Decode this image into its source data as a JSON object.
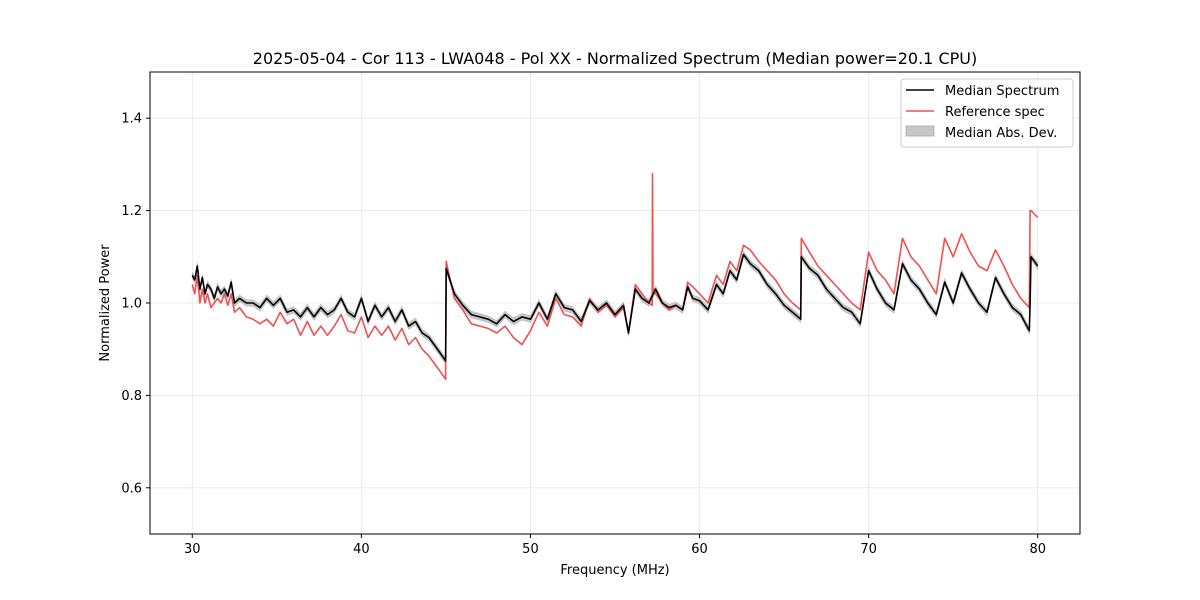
{
  "chart_data": {
    "type": "line",
    "title": "2025-05-04 - Cor 113 - LWA048 - Pol XX - Normalized Spectrum (Median power=20.1 CPU)",
    "xlabel": "Frequency (MHz)",
    "ylabel": "Normalized Power",
    "xlim": [
      27.5,
      82.5
    ],
    "ylim": [
      0.5,
      1.5
    ],
    "x_ticks": [
      30,
      40,
      50,
      60,
      70,
      80
    ],
    "x_tick_labels": [
      "30",
      "40",
      "50",
      "60",
      "70",
      "80"
    ],
    "y_ticks": [
      0.6,
      0.8,
      1.0,
      1.2,
      1.4
    ],
    "y_tick_labels": [
      "0.6",
      "0.8",
      "1.0",
      "1.2",
      "1.4"
    ],
    "grid": true,
    "legend_position": "top-right",
    "legend": [
      {
        "label": "Median Spectrum",
        "kind": "line",
        "color": "#000000"
      },
      {
        "label": "Reference spec",
        "kind": "line",
        "color": "#f05050"
      },
      {
        "label": "Median Abs. Dev.",
        "kind": "patch",
        "color": "#c8c8c8"
      }
    ],
    "mad_halfwidth": 0.007,
    "series": [
      {
        "name": "Median Spectrum",
        "color": "#000000",
        "x": [
          30.0,
          30.15,
          30.3,
          30.45,
          30.6,
          30.75,
          30.9,
          31.1,
          31.3,
          31.5,
          31.7,
          31.9,
          32.1,
          32.3,
          32.5,
          32.8,
          33.2,
          33.6,
          34.0,
          34.4,
          34.8,
          35.2,
          35.6,
          36.0,
          36.4,
          36.8,
          37.2,
          37.6,
          38.0,
          38.4,
          38.8,
          39.2,
          39.6,
          40.0,
          40.4,
          40.8,
          41.2,
          41.6,
          42.0,
          42.4,
          42.8,
          43.2,
          43.6,
          44.0,
          44.4,
          44.98,
          45.02,
          45.5,
          46.0,
          46.5,
          47.0,
          47.5,
          48.0,
          48.5,
          49.0,
          49.5,
          50.0,
          50.5,
          51.0,
          51.5,
          52.0,
          52.5,
          53.0,
          53.5,
          54.0,
          54.5,
          55.0,
          55.5,
          55.8,
          56.2,
          56.6,
          57.0,
          57.4,
          57.8,
          58.2,
          58.6,
          59.0,
          59.3,
          59.6,
          60.0,
          60.5,
          61.0,
          61.4,
          61.8,
          62.2,
          62.6,
          63.0,
          63.5,
          64.0,
          64.5,
          65.0,
          65.5,
          65.98,
          66.02,
          66.5,
          67.0,
          67.5,
          68.0,
          68.5,
          69.0,
          69.5,
          70.0,
          70.5,
          71.0,
          71.5,
          72.0,
          72.5,
          73.0,
          73.5,
          74.0,
          74.5,
          75.0,
          75.5,
          76.0,
          76.5,
          77.0,
          77.5,
          78.0,
          78.5,
          79.0,
          79.5,
          79.55,
          79.6,
          80.0
        ],
        "y": [
          1.06,
          1.05,
          1.08,
          1.03,
          1.055,
          1.02,
          1.04,
          1.03,
          1.01,
          1.035,
          1.02,
          1.03,
          1.015,
          1.045,
          1.0,
          1.01,
          1.0,
          1.0,
          0.99,
          1.01,
          0.995,
          1.01,
          0.98,
          0.985,
          0.97,
          0.99,
          0.97,
          0.99,
          0.975,
          0.985,
          1.01,
          0.98,
          0.97,
          1.01,
          0.96,
          0.995,
          0.97,
          0.99,
          0.96,
          0.985,
          0.95,
          0.96,
          0.935,
          0.925,
          0.905,
          0.875,
          1.075,
          1.02,
          0.995,
          0.975,
          0.97,
          0.965,
          0.955,
          0.975,
          0.96,
          0.97,
          0.965,
          1.0,
          0.965,
          1.02,
          0.99,
          0.985,
          0.96,
          1.005,
          0.985,
          1.0,
          0.975,
          0.995,
          0.935,
          1.03,
          1.01,
          1.0,
          1.03,
          1.0,
          0.99,
          0.995,
          0.985,
          1.035,
          1.01,
          1.005,
          0.985,
          1.04,
          1.02,
          1.07,
          1.05,
          1.105,
          1.085,
          1.07,
          1.04,
          1.02,
          0.995,
          0.98,
          0.965,
          1.1,
          1.075,
          1.06,
          1.03,
          1.01,
          0.99,
          0.98,
          0.955,
          1.07,
          1.03,
          1.0,
          0.985,
          1.085,
          1.05,
          1.03,
          1.0,
          0.975,
          1.045,
          1.0,
          1.065,
          1.03,
          1.0,
          0.98,
          1.055,
          1.02,
          0.99,
          0.975,
          0.94,
          1.0,
          1.1,
          1.08
        ]
      },
      {
        "name": "Reference spec",
        "color": "#f05050",
        "x": [
          30.0,
          30.15,
          30.3,
          30.45,
          30.6,
          30.75,
          30.9,
          31.1,
          31.3,
          31.5,
          31.7,
          31.9,
          32.1,
          32.3,
          32.5,
          32.8,
          33.2,
          33.6,
          34.0,
          34.4,
          34.8,
          35.2,
          35.6,
          36.0,
          36.4,
          36.8,
          37.2,
          37.6,
          38.0,
          38.4,
          38.8,
          39.2,
          39.6,
          40.0,
          40.4,
          40.8,
          41.2,
          41.6,
          42.0,
          42.4,
          42.8,
          43.2,
          43.6,
          44.0,
          44.4,
          44.98,
          45.02,
          45.5,
          46.0,
          46.5,
          47.0,
          47.5,
          48.0,
          48.5,
          49.0,
          49.5,
          50.0,
          50.5,
          51.0,
          51.5,
          52.0,
          52.5,
          53.0,
          53.5,
          54.0,
          54.5,
          55.0,
          55.5,
          55.8,
          56.2,
          56.6,
          57.0,
          57.2,
          57.22,
          57.25,
          57.28,
          57.4,
          57.8,
          58.2,
          58.6,
          59.0,
          59.3,
          59.6,
          60.0,
          60.5,
          61.0,
          61.4,
          61.8,
          62.2,
          62.6,
          63.0,
          63.5,
          64.0,
          64.5,
          65.0,
          65.5,
          65.98,
          66.02,
          66.5,
          67.0,
          67.5,
          68.0,
          68.5,
          69.0,
          69.5,
          70.0,
          70.5,
          71.0,
          71.5,
          72.0,
          72.5,
          73.0,
          73.5,
          74.0,
          74.5,
          75.0,
          75.5,
          76.0,
          76.5,
          77.0,
          77.5,
          78.0,
          78.5,
          79.0,
          79.5,
          79.55,
          79.6,
          80.0
        ],
        "y": [
          1.04,
          1.02,
          1.06,
          1.0,
          1.03,
          1.0,
          1.02,
          0.99,
          1.0,
          1.01,
          1.0,
          1.02,
          0.995,
          1.02,
          0.98,
          0.99,
          0.97,
          0.965,
          0.955,
          0.965,
          0.95,
          0.98,
          0.955,
          0.965,
          0.93,
          0.96,
          0.93,
          0.95,
          0.93,
          0.95,
          0.975,
          0.94,
          0.935,
          0.97,
          0.925,
          0.95,
          0.93,
          0.95,
          0.92,
          0.945,
          0.91,
          0.925,
          0.9,
          0.885,
          0.865,
          0.835,
          1.09,
          1.01,
          0.985,
          0.955,
          0.95,
          0.945,
          0.935,
          0.95,
          0.925,
          0.91,
          0.94,
          0.98,
          0.95,
          1.01,
          0.975,
          0.97,
          0.95,
          1.01,
          0.98,
          0.995,
          0.97,
          0.99,
          0.935,
          1.04,
          1.02,
          1.0,
          0.995,
          1.28,
          1.03,
          1.03,
          1.02,
          1.0,
          0.985,
          0.995,
          0.985,
          1.045,
          1.035,
          1.02,
          1.0,
          1.06,
          1.04,
          1.09,
          1.07,
          1.125,
          1.115,
          1.09,
          1.07,
          1.05,
          1.02,
          1.0,
          0.985,
          1.14,
          1.11,
          1.08,
          1.06,
          1.04,
          1.02,
          1.0,
          0.985,
          1.11,
          1.07,
          1.05,
          1.02,
          1.14,
          1.1,
          1.08,
          1.05,
          1.02,
          1.14,
          1.1,
          1.15,
          1.11,
          1.08,
          1.07,
          1.115,
          1.08,
          1.04,
          1.01,
          0.99,
          1.2,
          1.2,
          1.185
        ]
      }
    ]
  }
}
